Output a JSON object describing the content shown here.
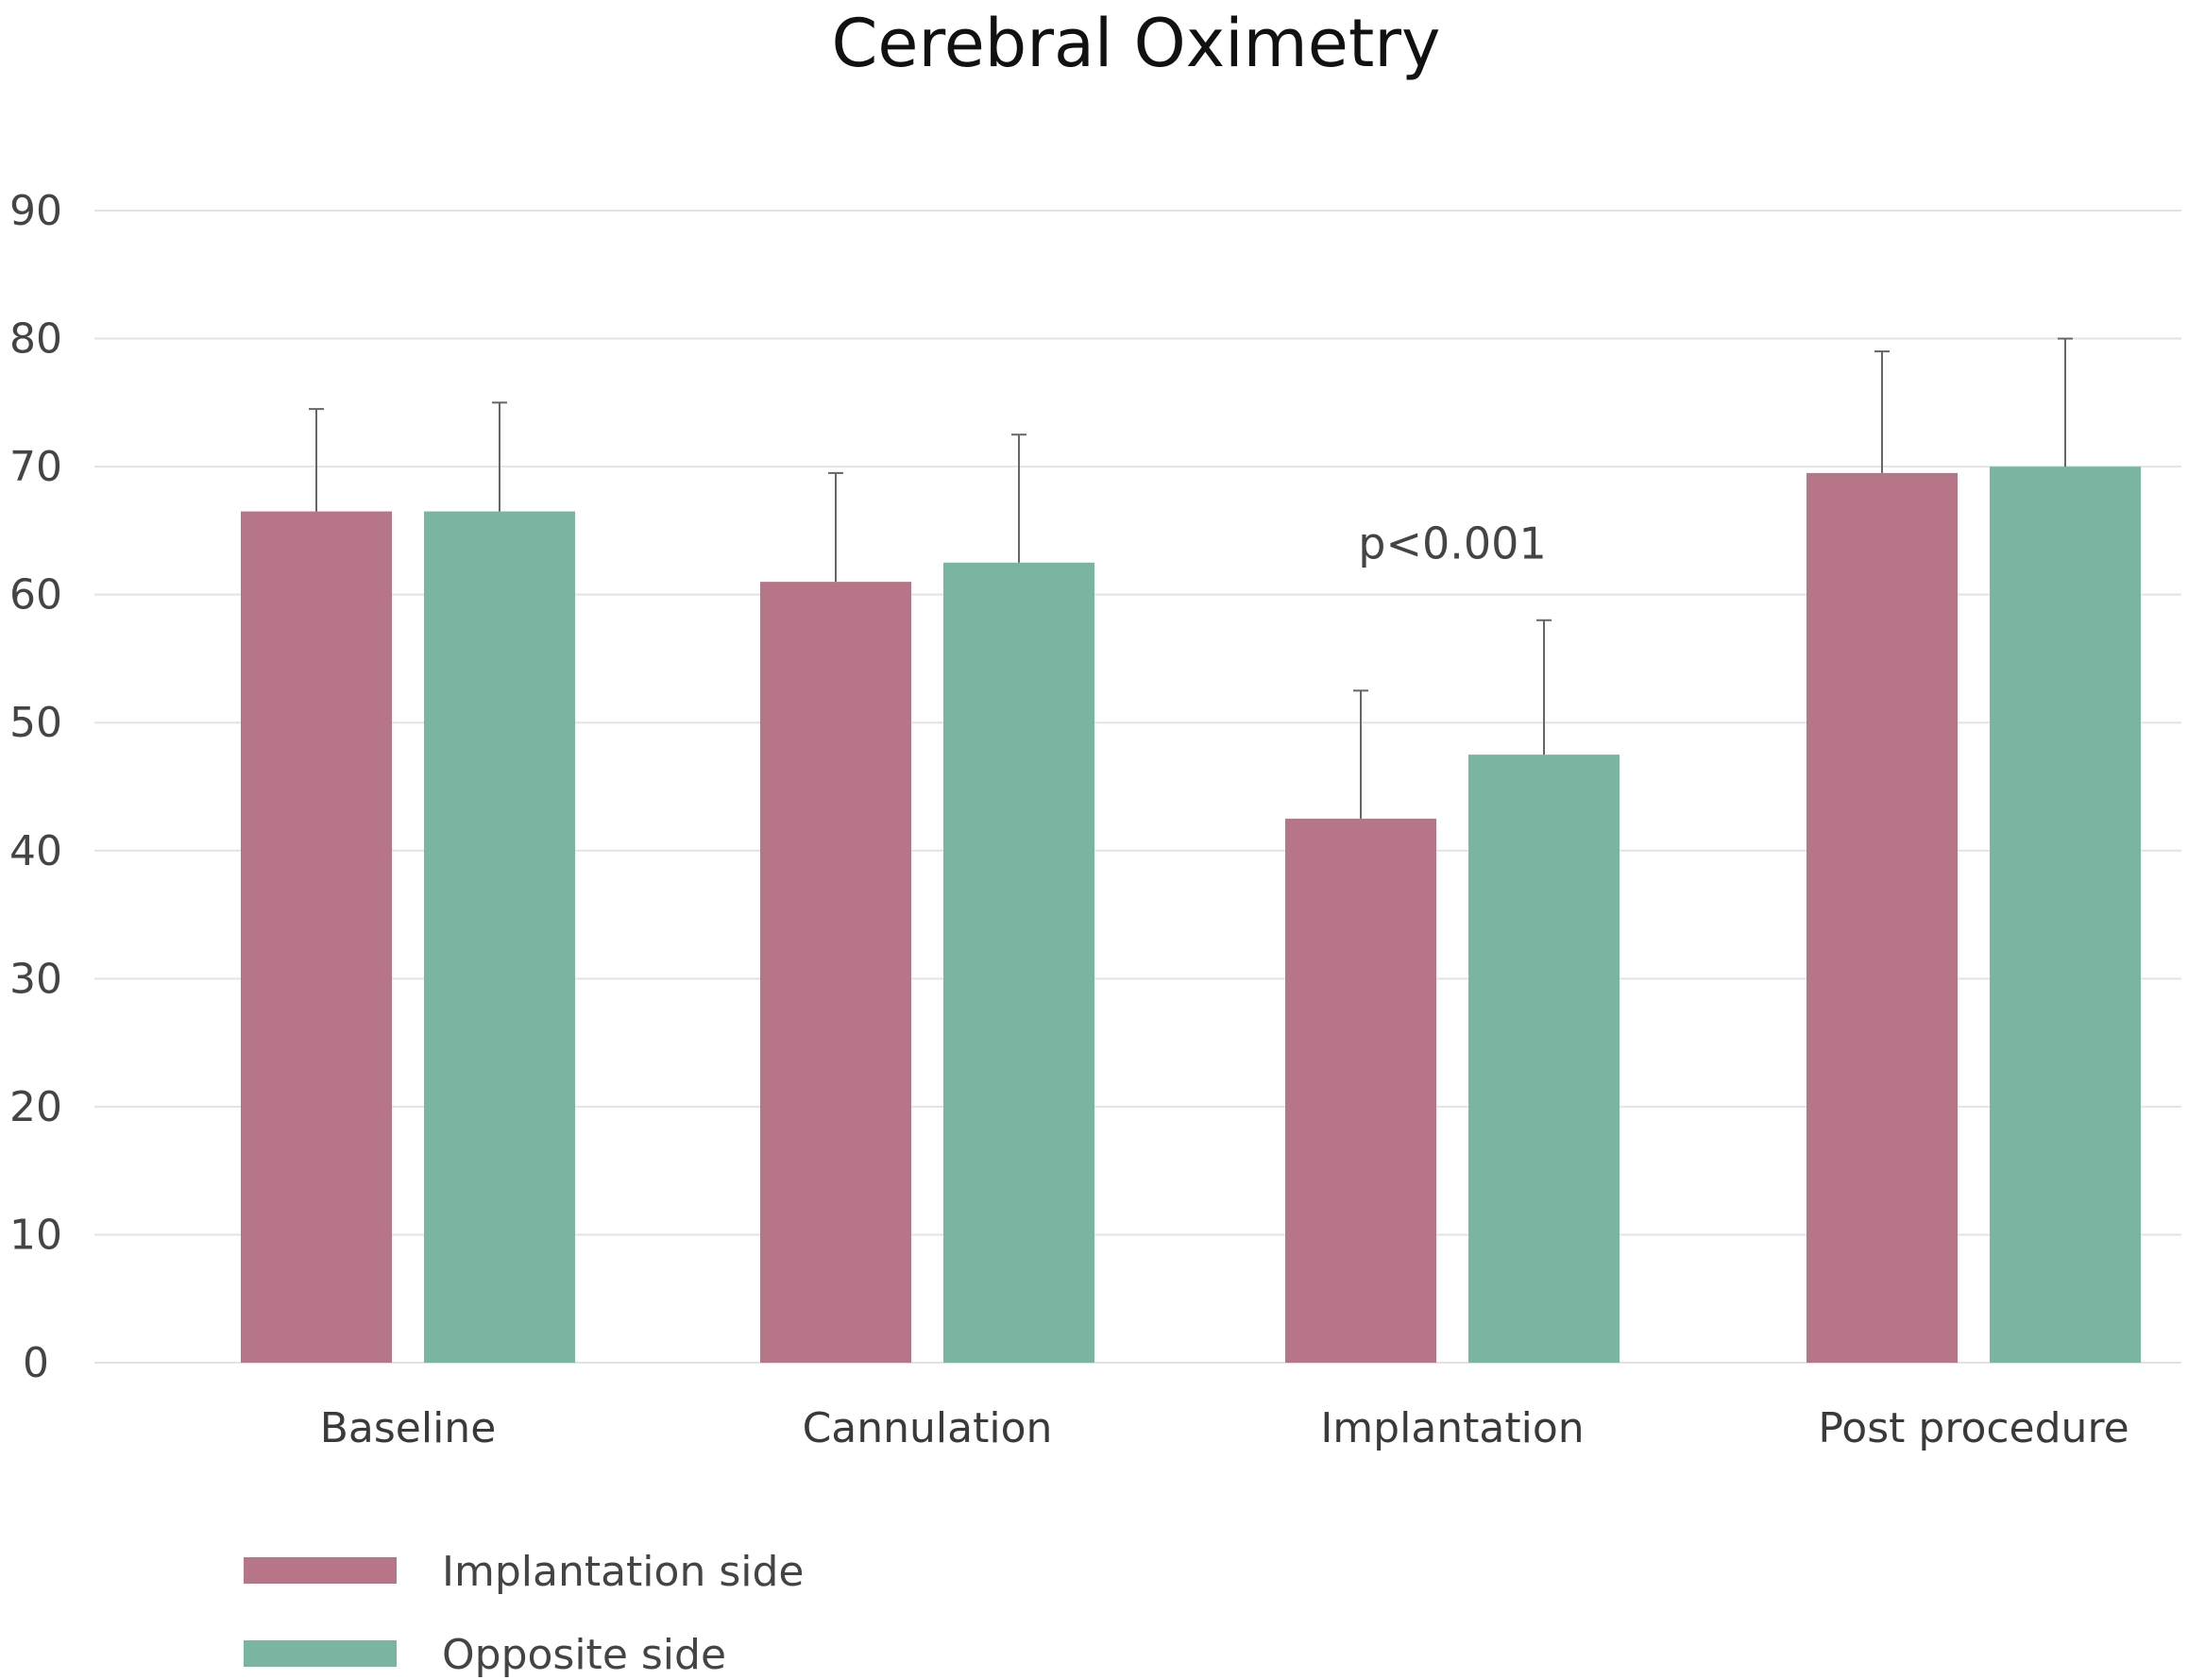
{
  "chart_data": {
    "type": "bar",
    "title": "Cerebral Oximetry",
    "xlabel": "",
    "ylabel": "",
    "ylim": [
      0,
      90
    ],
    "yticks": [
      0,
      10,
      20,
      30,
      40,
      50,
      60,
      70,
      80,
      90
    ],
    "ytick_labels": [
      "0",
      "10",
      "20",
      "30",
      "40",
      "50",
      "60",
      "70",
      "80",
      "90"
    ],
    "grid": true,
    "legend_position": "bottom-left",
    "categories": [
      "Baseline",
      "Cannulation",
      "Implantation",
      "Post procedure"
    ],
    "series": [
      {
        "name": "Implantation side",
        "color": "#b67687",
        "values": [
          66.5,
          61,
          42.5,
          69.5
        ],
        "error_upper": [
          74.5,
          69.5,
          52.5,
          79
        ]
      },
      {
        "name": "Opposite side",
        "color": "#7ab5a2",
        "values": [
          66.5,
          62.5,
          47.5,
          70
        ],
        "error_upper": [
          75,
          72.5,
          58,
          80
        ]
      }
    ],
    "annotations": [
      {
        "text": "p<0.001",
        "category": "Implantation",
        "y": 64
      }
    ]
  }
}
